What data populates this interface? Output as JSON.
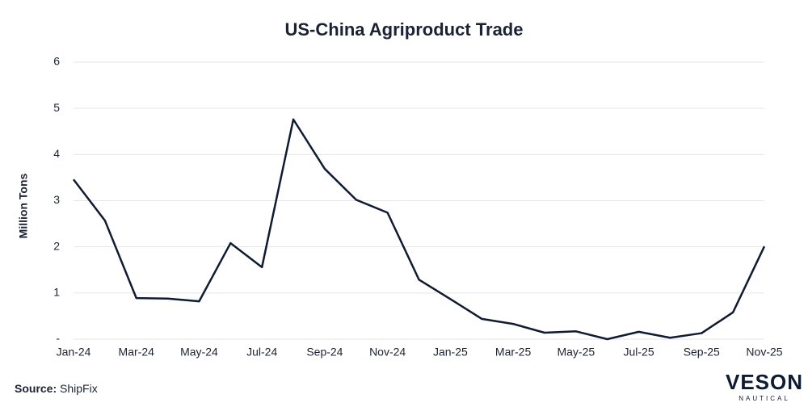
{
  "chart_data": {
    "type": "line",
    "title": "US-China Agriproduct Trade",
    "y_label": "Million Tons",
    "categories": [
      "Jan-24",
      null,
      "Mar-24",
      null,
      "May-24",
      null,
      "Jul-24",
      null,
      "Sep-24",
      null,
      "Nov-24",
      null,
      "Jan-25",
      null,
      "Mar-25",
      null,
      "May-25",
      null,
      "Jul-25",
      null,
      "Sep-25",
      null,
      "Nov-25"
    ],
    "series": [
      {
        "name": "US-China Agriproduct Trade",
        "color": "#0f1a33",
        "values": [
          3.46,
          2.57,
          0.89,
          0.88,
          0.82,
          2.08,
          1.56,
          4.76,
          3.69,
          3.02,
          2.74,
          1.29,
          0.87,
          0.44,
          0.33,
          0.14,
          0.17,
          0.0,
          0.16,
          0.03,
          0.13,
          0.58,
          2.01
        ]
      }
    ],
    "ylim": [
      0,
      6
    ],
    "yticks": [
      {
        "value": 0,
        "label": "-"
      },
      1,
      2,
      3,
      4,
      5,
      6
    ],
    "grid": true
  },
  "footer": {
    "source_label": "Source:",
    "source_text": "ShipFix",
    "logo": "VESON",
    "logo_sub": "NAUTICAL"
  }
}
